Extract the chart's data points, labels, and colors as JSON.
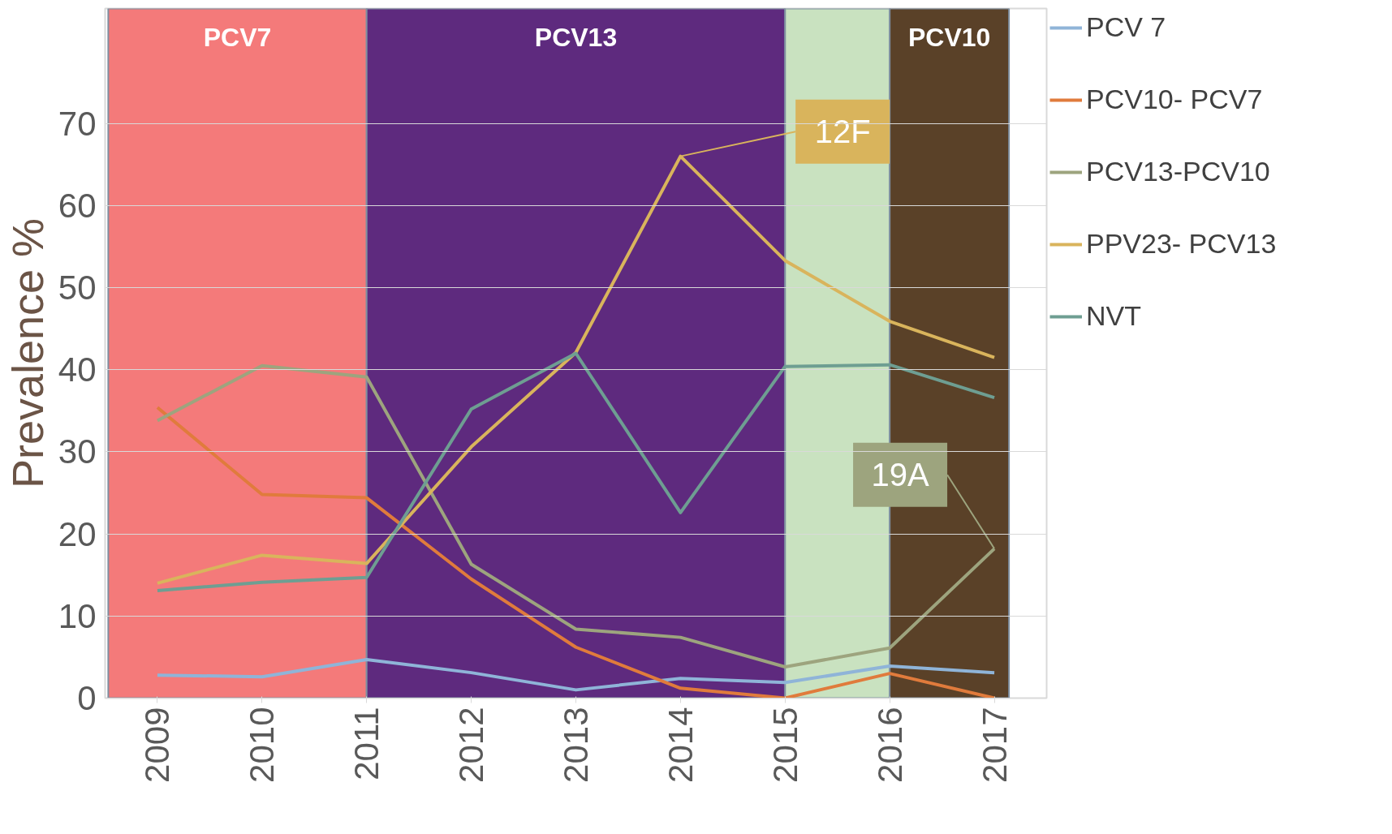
{
  "chart_data": {
    "type": "line",
    "ylabel": "Prevalence %",
    "categories": [
      "2009",
      "2010",
      "2011",
      "2012",
      "2013",
      "2014",
      "2015",
      "2016",
      "2017"
    ],
    "series": [
      {
        "name": "PCV 7",
        "color": "#8fb4d8",
        "values": [
          2.8,
          2.6,
          4.7,
          3.1,
          1.0,
          2.4,
          1.9,
          3.9,
          3.1
        ]
      },
      {
        "name": "PCV10- PCV7",
        "color": "#e07b3c",
        "values": [
          35.4,
          24.8,
          24.4,
          14.5,
          6.2,
          1.2,
          0,
          3.0,
          0
        ]
      },
      {
        "name": "PCV13-PCV10",
        "color": "#9da47e",
        "values": [
          33.8,
          40.5,
          39.1,
          16.3,
          8.4,
          7.4,
          3.8,
          6.1,
          18.2
        ]
      },
      {
        "name": "PPV23- PCV13",
        "color": "#d9b45c",
        "values": [
          14.0,
          17.4,
          16.4,
          30.6,
          42.1,
          66.0,
          53.3,
          45.9,
          41.5
        ]
      },
      {
        "name": "NVT",
        "color": "#6e9e92",
        "values": [
          13.1,
          14.1,
          14.7,
          35.2,
          42.0,
          22.6,
          40.4,
          40.6,
          36.6
        ]
      }
    ],
    "ylim": [
      0,
      84
    ],
    "yticks": [
      0,
      10,
      20,
      30,
      40,
      50,
      60,
      70
    ],
    "grid": "y",
    "legend": "right",
    "line_style": "solid",
    "marker": "none",
    "bands": [
      {
        "axis": "x",
        "from": "2009",
        "to": "2011",
        "label": "PCV7",
        "color": "#f47a7a"
      },
      {
        "axis": "x",
        "from": "2011",
        "to": "2015",
        "label": "PCV13",
        "color": "#5e2a7e"
      },
      {
        "axis": "x",
        "from": "2015",
        "to": "2016",
        "label": null,
        "color": "#c9e2c0"
      },
      {
        "axis": "x",
        "from": "2016",
        "to": "2017",
        "label": "PCV10",
        "color": "#5a4128"
      }
    ],
    "annotations": [
      {
        "text": "12F",
        "x": "2014",
        "y": 66.0
      },
      {
        "text": "19A",
        "x": "2017",
        "y": 18.2
      }
    ]
  }
}
